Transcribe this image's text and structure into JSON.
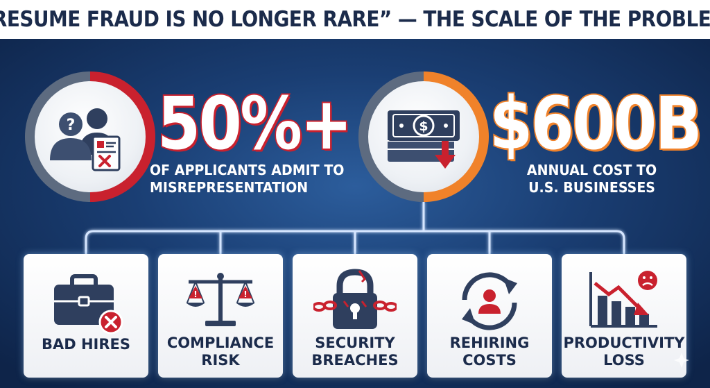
{
  "title": "“RESUME FRAUD IS NO LONGER RARE” — THE SCALE OF THE PROBLEM",
  "stats": [
    {
      "value": "50%+",
      "caption_line1": "OF APPLICANTS ADMIT TO",
      "caption_line2": "MISREPRESENTATION",
      "icon": "applicants-resume-icon",
      "accent": "#c9212e"
    },
    {
      "value": "$600B",
      "caption_line1": "ANNUAL COST TO",
      "caption_line2": "U.S. BUSINESSES",
      "icon": "money-loss-icon",
      "accent": "#f0822a"
    }
  ],
  "impacts": [
    {
      "line1": "BAD HIRES",
      "line2": "",
      "icon": "briefcase-reject-icon"
    },
    {
      "line1": "COMPLIANCE",
      "line2": "RISK",
      "icon": "scales-warning-icon"
    },
    {
      "line1": "SECURITY",
      "line2": "BREACHES",
      "icon": "broken-lock-icon"
    },
    {
      "line1": "REHIRING",
      "line2": "COSTS",
      "icon": "rehire-cycle-icon"
    },
    {
      "line1": "PRODUCTIVITY",
      "line2": "LOSS",
      "icon": "declining-chart-icon"
    }
  ],
  "colors": {
    "navy": "#1b2b4b",
    "red": "#c9212e",
    "orange": "#f0822a",
    "background": "#1a3e73"
  }
}
